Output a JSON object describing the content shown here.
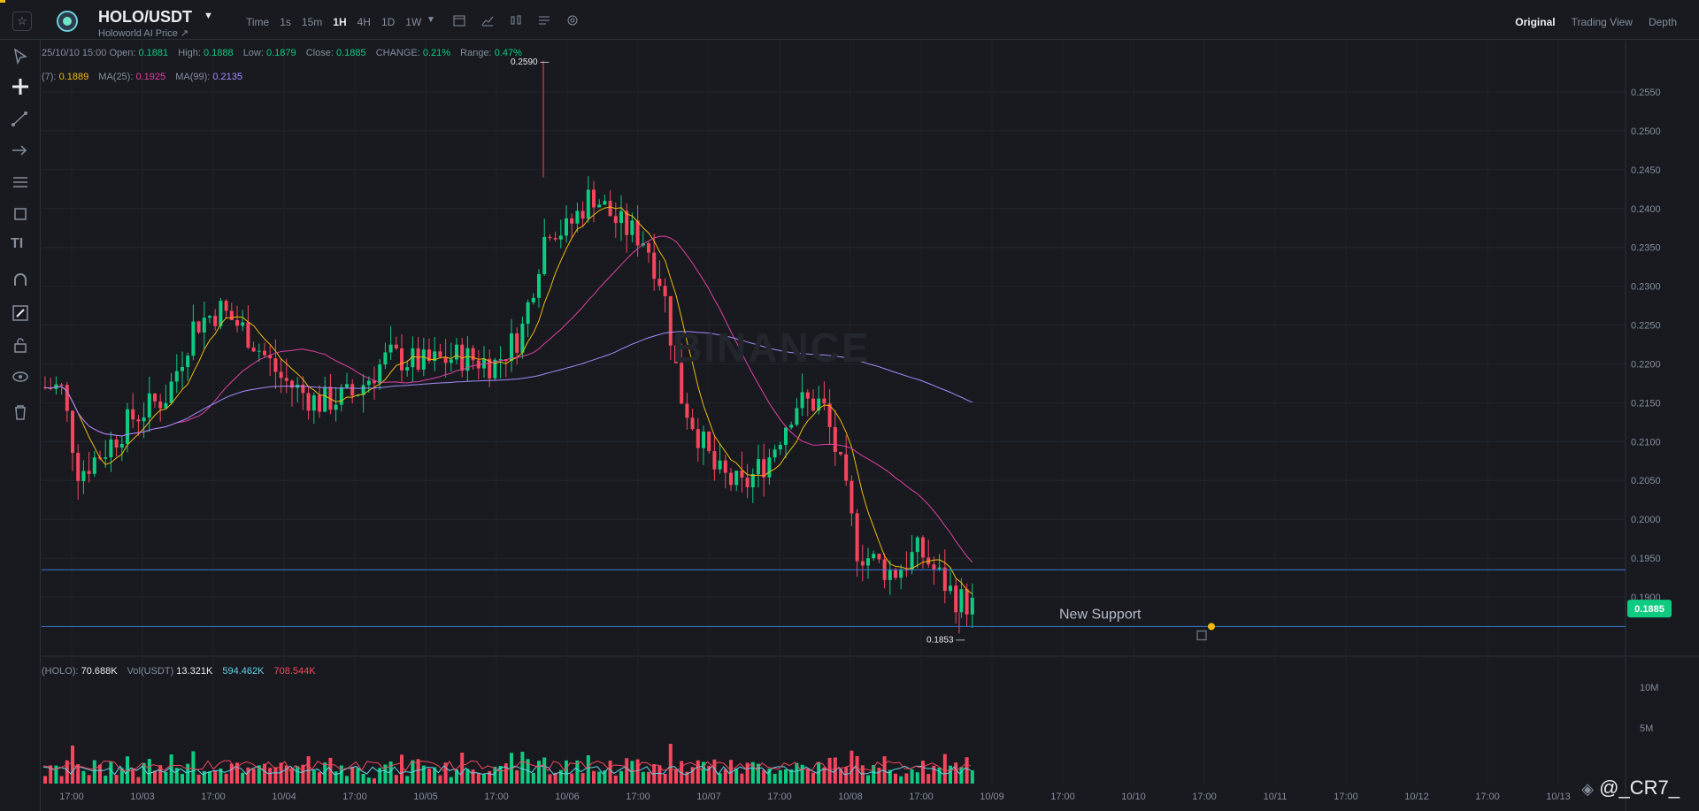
{
  "header": {
    "pair": "HOLO/USDT",
    "pair_subtitle": "Holoworld AI Price ↗",
    "intervals": [
      "Time",
      "1s",
      "15m",
      "1H",
      "4H",
      "1D",
      "1W"
    ],
    "active_interval": "1H",
    "view_tabs": [
      "Original",
      "Trading View",
      "Depth"
    ],
    "active_view": "Original"
  },
  "ohlc": {
    "datetime": "25/10/10 15:00",
    "open_label": "Open:",
    "open": "0.1881",
    "high_label": "High:",
    "high": "0.1888",
    "low_label": "Low:",
    "low": "0.1879",
    "close_label": "Close:",
    "close": "0.1885",
    "change_label": "CHANGE:",
    "change": "0.21%",
    "range_label": "Range:",
    "range": "0.47%"
  },
  "ma": {
    "ma7_label": "(7):",
    "ma7": "0.1889",
    "ma25_label": "MA(25):",
    "ma25": "0.1925",
    "ma99_label": "MA(99):",
    "ma99": "0.2135"
  },
  "volume": {
    "holo_label": "(HOLO):",
    "holo": "70.688K",
    "usdt_label": "Vol(USDT)",
    "usdt": "13.321K",
    "ma1": "594.462K",
    "ma2": "708.544K"
  },
  "price_axis": [
    "0.2550",
    "0.2500",
    "0.2450",
    "0.2400",
    "0.2350",
    "0.2300",
    "0.2250",
    "0.2200",
    "0.2150",
    "0.2100",
    "0.2050",
    "0.2000",
    "0.1950",
    "0.1900"
  ],
  "current_price": "0.1885",
  "volume_axis": [
    "10M",
    "5M"
  ],
  "time_axis": [
    "17:00",
    "10/03",
    "17:00",
    "10/04",
    "17:00",
    "10/05",
    "17:00",
    "10/06",
    "17:00",
    "10/07",
    "17:00",
    "10/08",
    "17:00",
    "10/09",
    "17:00",
    "10/10",
    "17:00",
    "10/11",
    "17:00",
    "10/12",
    "17:00",
    "10/13"
  ],
  "annotations": {
    "high_marker": "0.2590",
    "low_marker": "0.1853",
    "support_label": "New Support"
  },
  "watermark": "BINANCE",
  "brand": "@_CR7_",
  "colors": {
    "up": "#0ecb81",
    "down": "#f6465d",
    "ma7": "#f0b90b",
    "ma25": "#e040a0",
    "ma99": "#a78bfa",
    "line": "#3d7bd6",
    "accent": "#f0b90b"
  }
}
